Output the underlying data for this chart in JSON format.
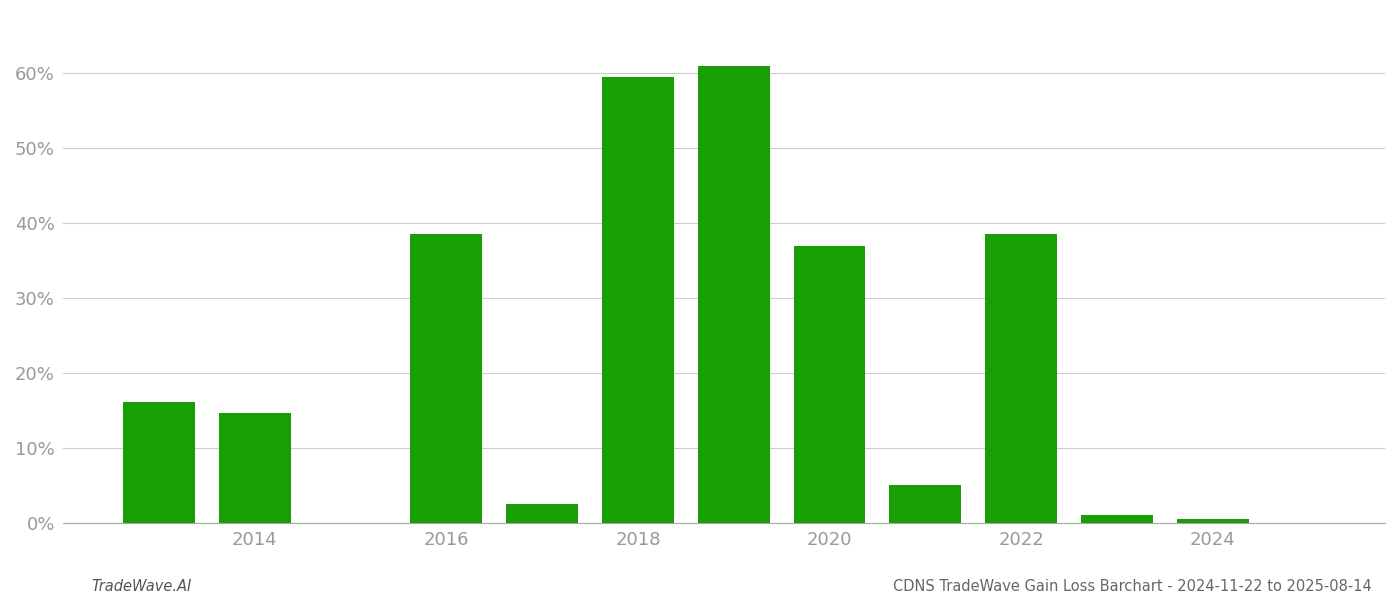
{
  "years": [
    2013,
    2014,
    2016,
    2017,
    2018,
    2019,
    2020,
    2021,
    2022,
    2023,
    2024
  ],
  "values": [
    0.161,
    0.146,
    0.385,
    0.025,
    0.595,
    0.61,
    0.37,
    0.05,
    0.385,
    0.01,
    0.005
  ],
  "bar_color": "#1a9e06",
  "background_color": "#ffffff",
  "grid_color": "#cccccc",
  "ytick_labels": [
    "0%",
    "10%",
    "20%",
    "30%",
    "40%",
    "50%",
    "60%"
  ],
  "ytick_values": [
    0.0,
    0.1,
    0.2,
    0.3,
    0.4,
    0.5,
    0.6
  ],
  "ylim": [
    0,
    0.67
  ],
  "xlim": [
    2012.0,
    2025.8
  ],
  "xtick_years": [
    2014,
    2016,
    2018,
    2020,
    2022,
    2024
  ],
  "bar_width": 0.75,
  "footer_left": "TradeWave.AI",
  "footer_right": "CDNS TradeWave Gain Loss Barchart - 2024-11-22 to 2025-08-14",
  "footer_fontsize": 10.5
}
